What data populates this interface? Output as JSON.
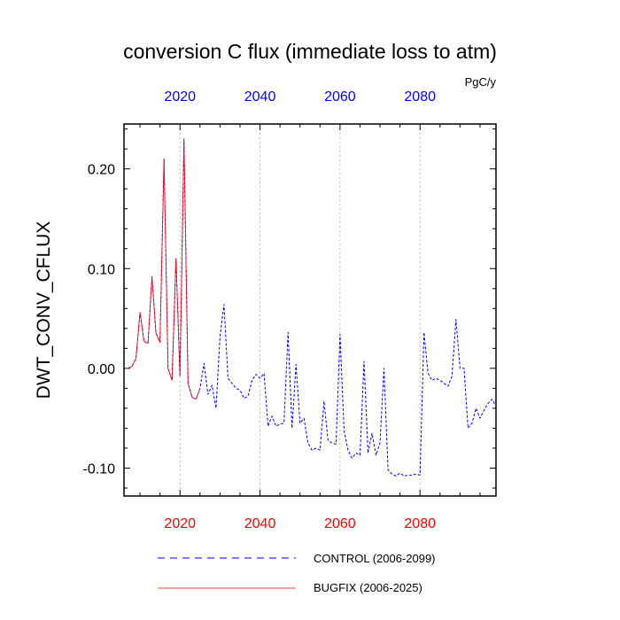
{
  "chart_data": {
    "type": "line",
    "title": "conversion C flux (immediate loss to atm)",
    "units": "PgC/y",
    "ylabel": "DWT_CONV_CFLUX",
    "xlim": [
      2006,
      2099
    ],
    "ylim": [
      -0.128,
      0.245
    ],
    "yticks": [
      -0.1,
      0.0,
      0.1,
      0.2
    ],
    "ytick_labels": [
      "-0.10",
      "0.00",
      "0.10",
      "0.20"
    ],
    "xticks": [
      2020,
      2040,
      2060,
      2080
    ],
    "xtick_labels": [
      "2020",
      "2040",
      "2060",
      "2080"
    ],
    "grid_x": true,
    "colors": {
      "control": "#0000ff",
      "bugfix": "#ff0000",
      "top_axis": "#0000ff",
      "bottom_axis": "#ff0000"
    },
    "series": [
      {
        "name": "CONTROL (2006-2099)",
        "style": "dashed",
        "x": [
          2006,
          2007,
          2008,
          2009,
          2010,
          2011,
          2012,
          2013,
          2014,
          2015,
          2016,
          2017,
          2018,
          2019,
          2020,
          2021,
          2022,
          2023,
          2024,
          2025,
          2026,
          2027,
          2028,
          2029,
          2030,
          2031,
          2032,
          2033,
          2034,
          2035,
          2036,
          2037,
          2038,
          2039,
          2040,
          2041,
          2042,
          2043,
          2044,
          2045,
          2046,
          2047,
          2048,
          2049,
          2050,
          2051,
          2052,
          2053,
          2054,
          2055,
          2056,
          2057,
          2058,
          2059,
          2060,
          2061,
          2062,
          2063,
          2064,
          2065,
          2066,
          2067,
          2068,
          2069,
          2070,
          2071,
          2072,
          2073,
          2074,
          2075,
          2076,
          2077,
          2078,
          2079,
          2080,
          2081,
          2082,
          2083,
          2084,
          2085,
          2086,
          2087,
          2088,
          2089,
          2090,
          2091,
          2092,
          2093,
          2094,
          2095,
          2096,
          2097,
          2098,
          2099
        ],
        "y": [
          0.0,
          0.0,
          0.002,
          0.01,
          0.056,
          0.027,
          0.025,
          0.092,
          0.035,
          0.026,
          0.21,
          0.0,
          -0.012,
          0.11,
          -0.008,
          0.23,
          -0.015,
          -0.029,
          -0.031,
          -0.02,
          0.005,
          -0.026,
          -0.017,
          -0.04,
          0.032,
          0.064,
          -0.01,
          -0.015,
          -0.02,
          -0.022,
          -0.03,
          -0.028,
          -0.012,
          -0.006,
          -0.01,
          -0.005,
          -0.058,
          -0.048,
          -0.058,
          -0.056,
          -0.055,
          0.036,
          -0.06,
          0.004,
          -0.055,
          -0.05,
          -0.075,
          -0.082,
          -0.08,
          -0.082,
          -0.033,
          -0.072,
          -0.075,
          -0.076,
          0.034,
          -0.062,
          -0.082,
          -0.09,
          -0.085,
          -0.087,
          0.007,
          -0.085,
          -0.065,
          -0.087,
          -0.075,
          0.0,
          -0.102,
          -0.106,
          -0.108,
          -0.105,
          -0.108,
          -0.107,
          -0.107,
          -0.106,
          -0.107,
          0.036,
          -0.005,
          -0.012,
          -0.01,
          -0.012,
          -0.015,
          -0.018,
          -0.008,
          0.049,
          0.0,
          0.0,
          -0.06,
          -0.055,
          -0.04,
          -0.05,
          -0.042,
          -0.035,
          -0.031,
          -0.038
        ]
      },
      {
        "name": "BUGFIX (2006-2025)",
        "style": "solid",
        "x": [
          2006,
          2007,
          2008,
          2009,
          2010,
          2011,
          2012,
          2013,
          2014,
          2015,
          2016,
          2017,
          2018,
          2019,
          2020,
          2021,
          2022,
          2023,
          2024,
          2025
        ],
        "y": [
          0.0,
          0.0,
          0.002,
          0.01,
          0.056,
          0.027,
          0.025,
          0.092,
          0.035,
          0.026,
          0.21,
          0.0,
          -0.012,
          0.11,
          -0.008,
          0.23,
          -0.015,
          -0.029,
          -0.031,
          -0.02
        ]
      }
    ]
  }
}
